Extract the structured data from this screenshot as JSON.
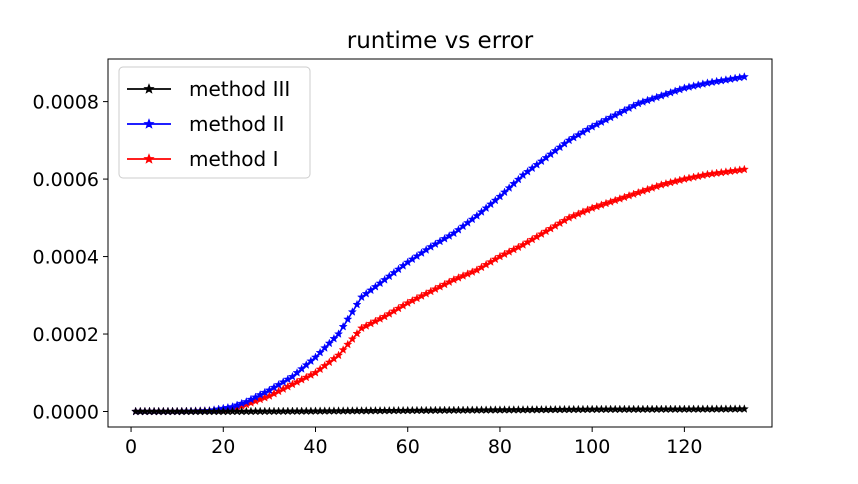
{
  "chart_data": {
    "type": "line",
    "title": "runtime vs error",
    "xlabel": "",
    "ylabel": "",
    "xlim": [
      -5,
      139
    ],
    "ylim": [
      -4e-05,
      0.00091
    ],
    "xticks": [
      0,
      20,
      40,
      60,
      80,
      100,
      120
    ],
    "xtick_labels": [
      "0",
      "20",
      "40",
      "60",
      "80",
      "100",
      "120"
    ],
    "yticks": [
      0.0,
      0.0002,
      0.0004,
      0.0006,
      0.0008
    ],
    "ytick_labels": [
      "0.0000",
      "0.0002",
      "0.0004",
      "0.0006",
      "0.0008"
    ],
    "grid": false,
    "legend_position": "top-left",
    "marker": "star",
    "x_range": [
      1,
      133
    ],
    "series": [
      {
        "name": "method III",
        "color": "#000000",
        "anchors": [
          [
            1,
            0.0
          ],
          [
            20,
            0.0
          ],
          [
            40,
            1e-06
          ],
          [
            60,
            2.5e-06
          ],
          [
            80,
            4e-06
          ],
          [
            100,
            5.5e-06
          ],
          [
            120,
            6e-06
          ],
          [
            133,
            6.5e-06
          ]
        ]
      },
      {
        "name": "method II",
        "color": "#0000ff",
        "anchors": [
          [
            1,
            0.0
          ],
          [
            10,
            0.0
          ],
          [
            17,
            2e-06
          ],
          [
            22,
            1.2e-05
          ],
          [
            25,
            2.5e-05
          ],
          [
            30,
            5.5e-05
          ],
          [
            35,
            9e-05
          ],
          [
            40,
            0.00014
          ],
          [
            45,
            0.0002
          ],
          [
            50,
            0.000295
          ],
          [
            55,
            0.00034
          ],
          [
            60,
            0.000385
          ],
          [
            65,
            0.000425
          ],
          [
            70,
            0.00046
          ],
          [
            75,
            0.000505
          ],
          [
            80,
            0.000555
          ],
          [
            85,
            0.00061
          ],
          [
            90,
            0.000655
          ],
          [
            95,
            0.0007
          ],
          [
            100,
            0.000735
          ],
          [
            105,
            0.000765
          ],
          [
            110,
            0.000795
          ],
          [
            115,
            0.000815
          ],
          [
            120,
            0.000835
          ],
          [
            125,
            0.000848
          ],
          [
            130,
            0.000858
          ],
          [
            133,
            0.000864
          ]
        ]
      },
      {
        "name": "method I",
        "color": "#ff0000",
        "anchors": [
          [
            1,
            0.0
          ],
          [
            10,
            0.0
          ],
          [
            17,
            2e-06
          ],
          [
            22,
            8e-06
          ],
          [
            25,
            1.8e-05
          ],
          [
            30,
            4e-05
          ],
          [
            35,
            7e-05
          ],
          [
            40,
            0.0001
          ],
          [
            45,
            0.000145
          ],
          [
            50,
            0.000215
          ],
          [
            55,
            0.000245
          ],
          [
            60,
            0.00028
          ],
          [
            65,
            0.00031
          ],
          [
            70,
            0.00034
          ],
          [
            75,
            0.000365
          ],
          [
            80,
            0.0004
          ],
          [
            85,
            0.00043
          ],
          [
            90,
            0.000465
          ],
          [
            95,
            0.0005
          ],
          [
            100,
            0.000525
          ],
          [
            105,
            0.000545
          ],
          [
            110,
            0.000565
          ],
          [
            115,
            0.000585
          ],
          [
            120,
            0.0006
          ],
          [
            125,
            0.000612
          ],
          [
            130,
            0.00062
          ],
          [
            133,
            0.000625
          ]
        ]
      }
    ]
  }
}
